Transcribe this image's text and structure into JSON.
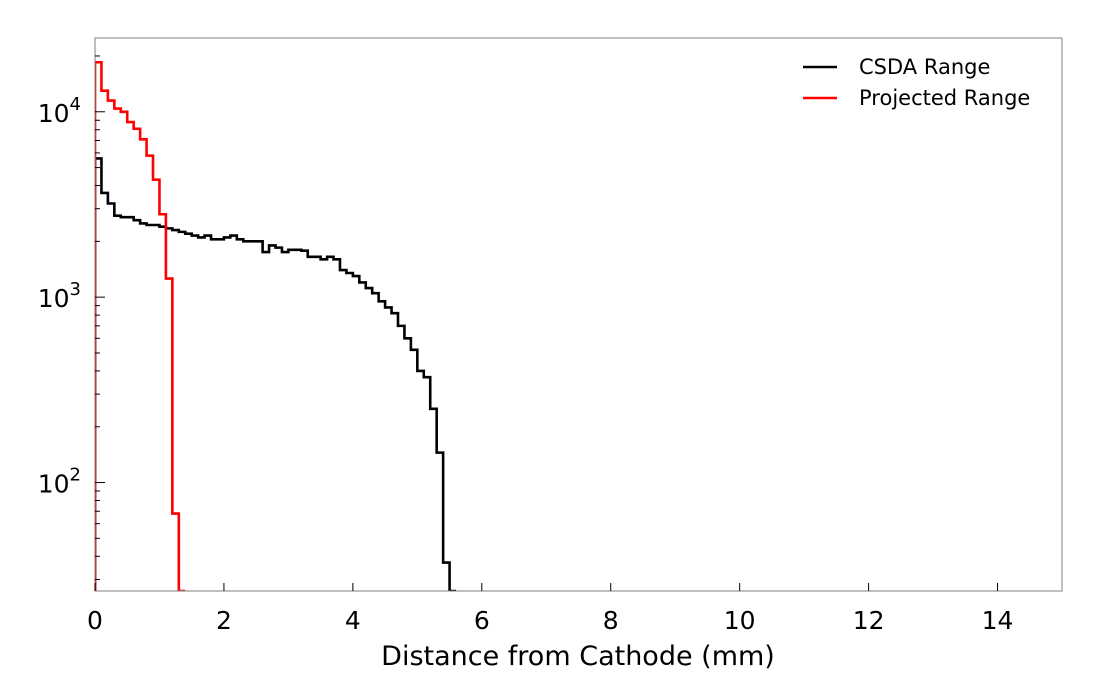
{
  "chart_data": {
    "type": "line",
    "subtype": "step-histogram",
    "title": "",
    "xlabel": "Distance from Cathode (mm)",
    "ylabel": "",
    "xlim": [
      0,
      15
    ],
    "ylim": [
      26,
      25000
    ],
    "yscale": "log",
    "grid": false,
    "legend_position": "top-right",
    "bin_width": 0.1,
    "x_ticks": [
      0,
      2,
      4,
      6,
      8,
      10,
      12,
      14
    ],
    "x_tick_labels": [
      "0",
      "2",
      "4",
      "6",
      "8",
      "10",
      "12",
      "14"
    ],
    "y_major_ticks": [
      100,
      1000,
      10000
    ],
    "y_tick_labels": [
      {
        "base": "10",
        "exp": "2"
      },
      {
        "base": "10",
        "exp": "3"
      },
      {
        "base": "10",
        "exp": "4"
      }
    ],
    "series": [
      {
        "name": "CSDA Range",
        "color": "#000000",
        "x_start": 0.0,
        "values": [
          5600,
          3650,
          3200,
          2750,
          2700,
          2700,
          2600,
          2500,
          2450,
          2450,
          2400,
          2350,
          2300,
          2250,
          2200,
          2150,
          2100,
          2150,
          2050,
          2050,
          2100,
          2150,
          2050,
          2000,
          2000,
          2000,
          1750,
          1900,
          1850,
          1750,
          1800,
          1800,
          1780,
          1650,
          1650,
          1600,
          1650,
          1600,
          1400,
          1350,
          1300,
          1200,
          1120,
          1050,
          950,
          880,
          820,
          700,
          600,
          520,
          400,
          370,
          250,
          145,
          37,
          26
        ]
      },
      {
        "name": "Projected Range",
        "color": "#ff0000",
        "x_start": 0.0,
        "values": [
          18500,
          13000,
          11500,
          10400,
          10000,
          8800,
          8100,
          7100,
          5800,
          4300,
          2800,
          1260,
          68,
          26
        ]
      }
    ]
  }
}
